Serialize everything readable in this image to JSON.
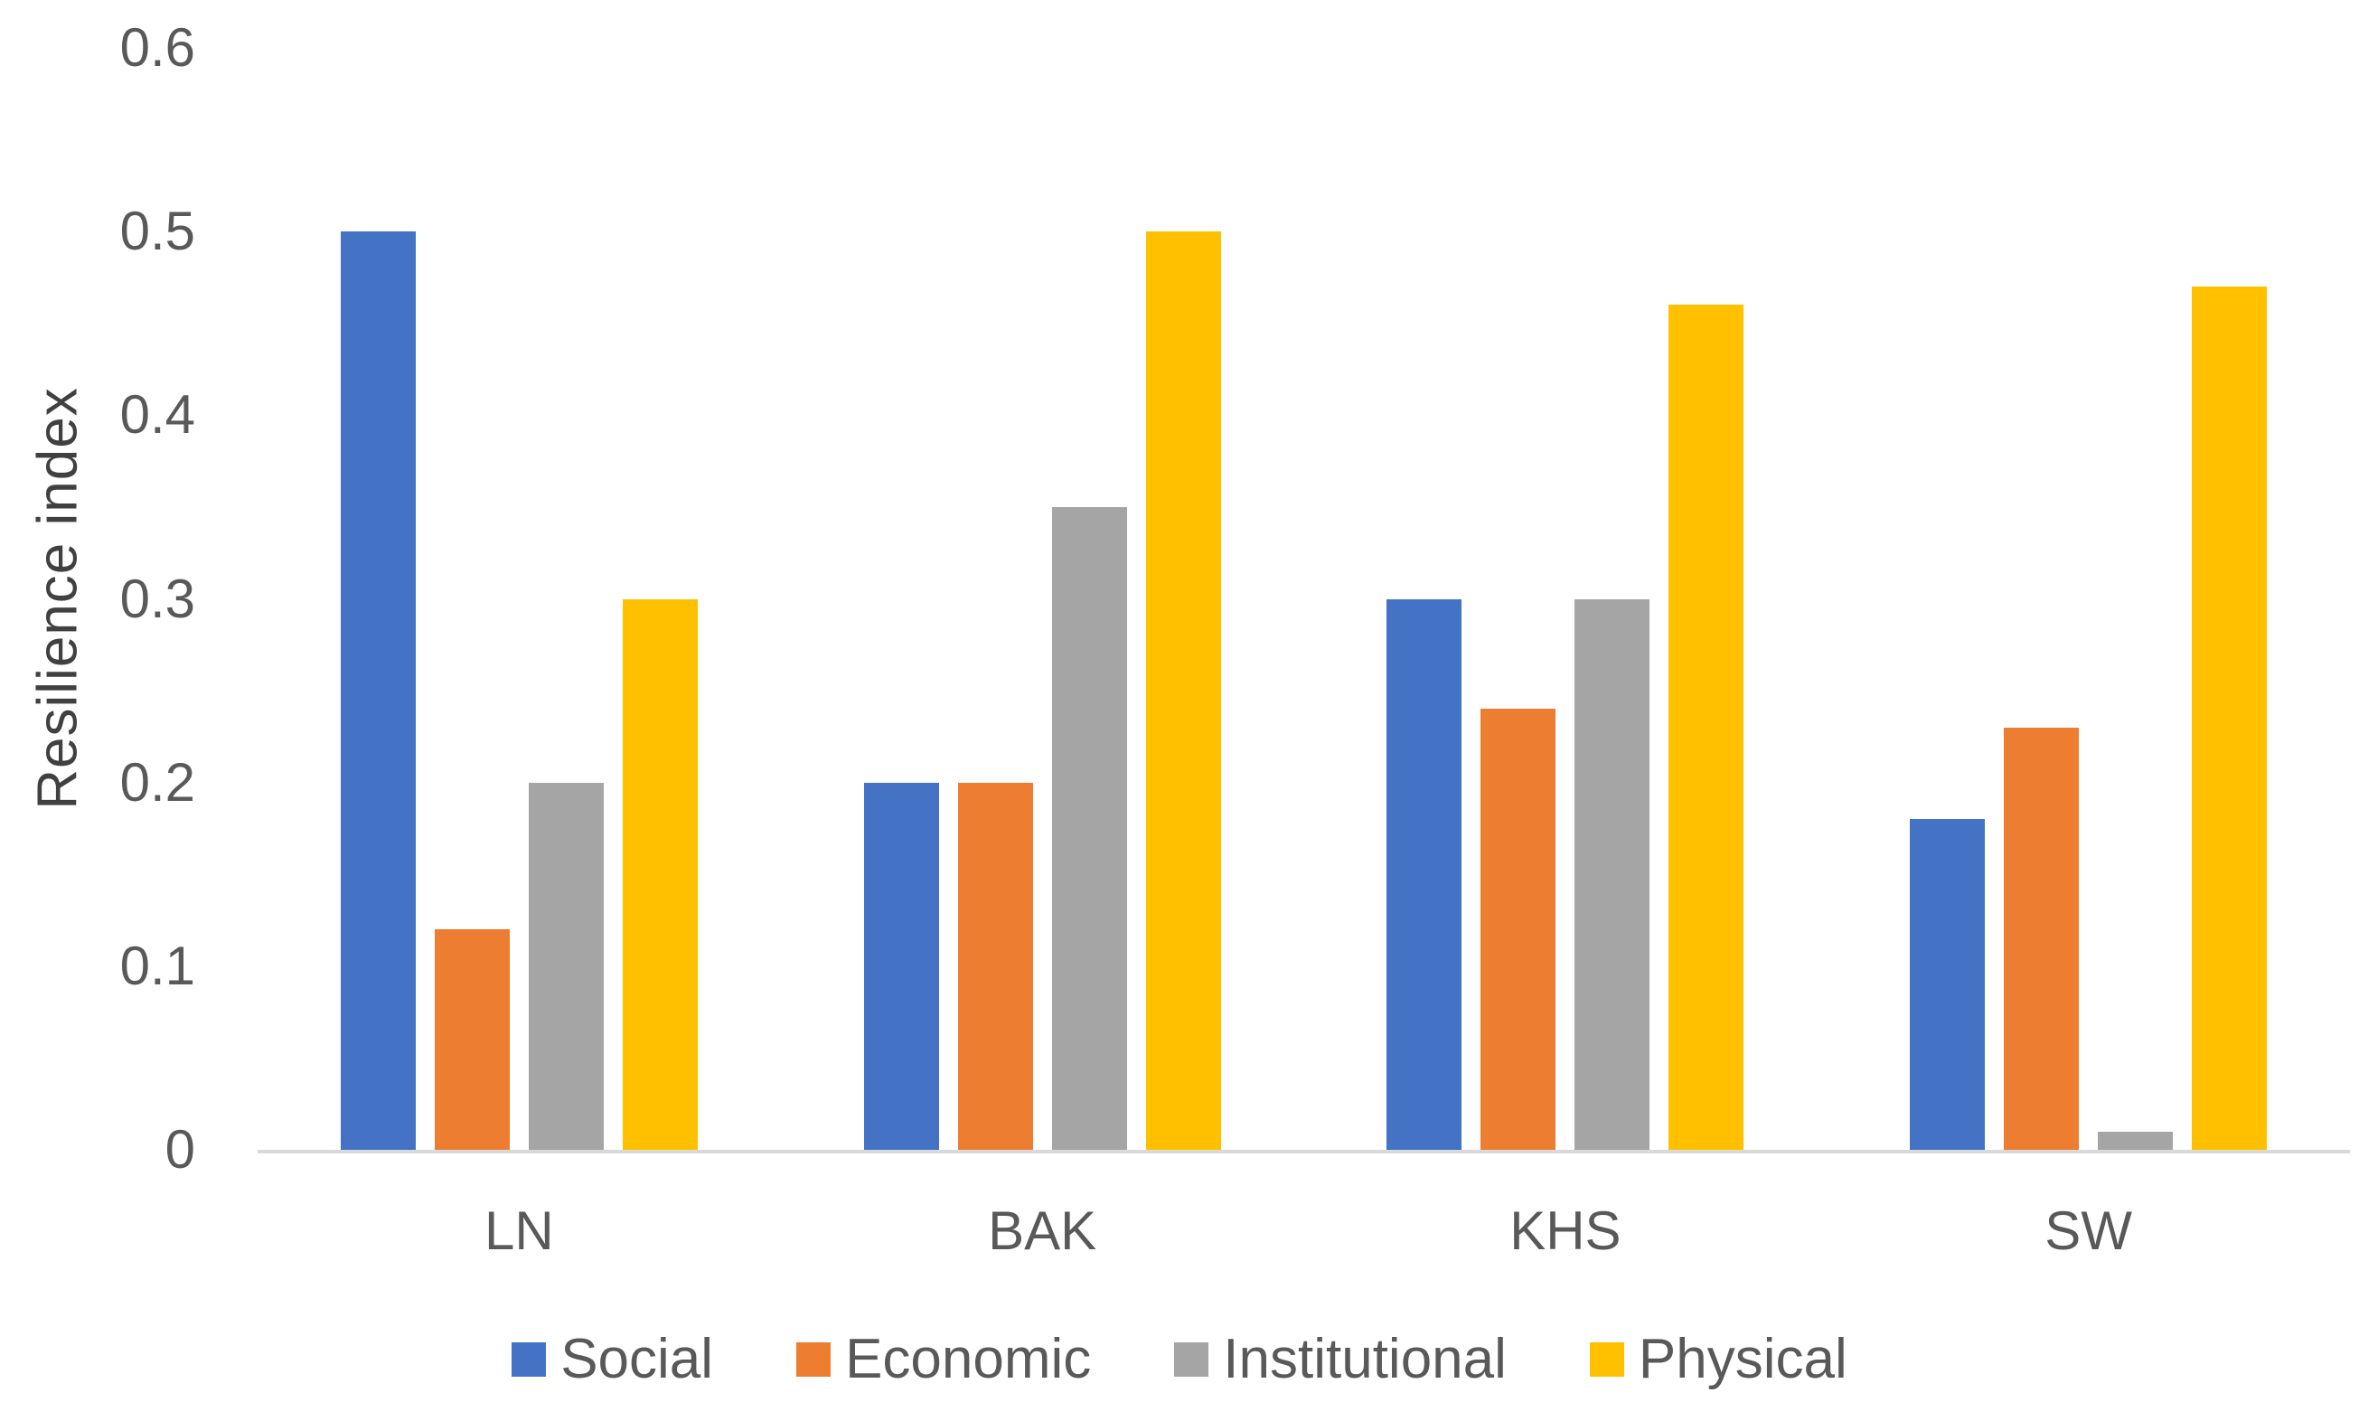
{
  "chart_data": {
    "type": "bar",
    "title": "",
    "xlabel": "",
    "ylabel": "Resilience index",
    "ylim": [
      0,
      0.6
    ],
    "grid": false,
    "legend_position": "bottom",
    "background_color": "#FFFFFF",
    "axis_line_color": "#D9D9D9",
    "tick_label_color": "#595959",
    "category_label_color": "#595959",
    "axis_title_color": "#404040",
    "yticks": [
      {
        "label": "0.6",
        "value": 0.6
      },
      {
        "label": "0.5",
        "value": 0.5
      },
      {
        "label": "0.4",
        "value": 0.4
      },
      {
        "label": "0.3",
        "value": 0.3
      },
      {
        "label": "0.2",
        "value": 0.2
      },
      {
        "label": "0.1",
        "value": 0.1
      },
      {
        "label": "0",
        "value": 0
      }
    ],
    "categories": [
      "LN",
      "BAK",
      "KHS",
      "SW"
    ],
    "series": [
      {
        "name": "Social",
        "color": "#4472C4",
        "values": [
          0.5,
          0.2,
          0.3,
          0.18
        ]
      },
      {
        "name": "Economic",
        "color": "#ED7D31",
        "values": [
          0.12,
          0.2,
          0.24,
          0.23
        ]
      },
      {
        "name": "Institutional",
        "color": "#A5A5A5",
        "values": [
          0.2,
          0.35,
          0.3,
          0.01
        ]
      },
      {
        "name": "Physical",
        "color": "#FFC000",
        "values": [
          0.3,
          0.5,
          0.46,
          0.47
        ]
      }
    ]
  }
}
